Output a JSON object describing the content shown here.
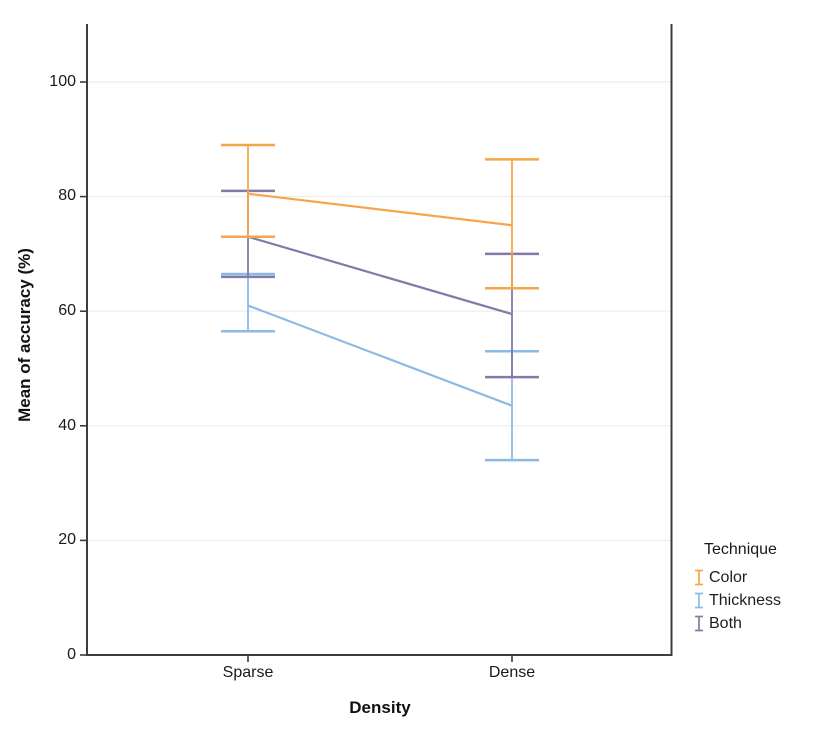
{
  "chart_data": {
    "type": "line",
    "title": "",
    "xlabel": "Density",
    "ylabel": "Mean of accuracy (%)",
    "categories": [
      "Sparse",
      "Dense"
    ],
    "yticks": [
      0,
      20,
      40,
      60,
      80,
      100
    ],
    "ylim": [
      0,
      110
    ],
    "grid": true,
    "legend_position": "right",
    "legend_title": "Technique",
    "error_bars": true,
    "series": [
      {
        "name": "Color",
        "color": "#F6A64A",
        "means": [
          80.5,
          75.0
        ],
        "ci_low": [
          73.0,
          64.0
        ],
        "ci_high": [
          89.0,
          86.5
        ]
      },
      {
        "name": "Thickness",
        "color": "#8DB9E5",
        "means": [
          61.0,
          43.5
        ],
        "ci_low": [
          56.5,
          34.0
        ],
        "ci_high": [
          66.5,
          53.0
        ]
      },
      {
        "name": "Both",
        "color": "#827AA7",
        "means": [
          73.0,
          59.5
        ],
        "ci_low": [
          66.0,
          48.5
        ],
        "ci_high": [
          81.0,
          70.0
        ]
      }
    ],
    "colors": {
      "axis": "#3D3D3D",
      "grid": "#F0F0F0",
      "text": "#1A1A1A"
    }
  }
}
